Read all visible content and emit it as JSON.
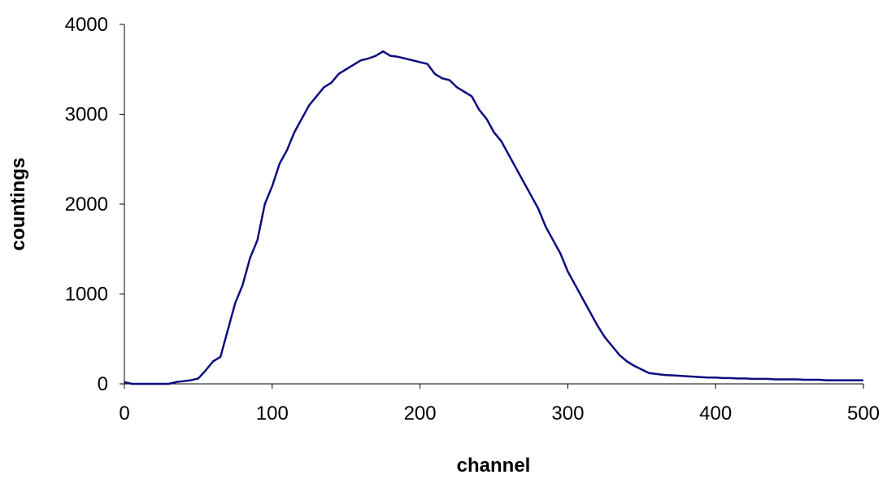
{
  "chart_data": {
    "type": "line",
    "x_label": "channel",
    "y_label": "countings",
    "x": [
      0,
      5,
      10,
      15,
      20,
      25,
      30,
      35,
      40,
      45,
      50,
      55,
      60,
      65,
      70,
      75,
      80,
      85,
      90,
      95,
      100,
      105,
      110,
      115,
      120,
      125,
      130,
      135,
      140,
      145,
      150,
      155,
      160,
      165,
      170,
      175,
      180,
      185,
      190,
      195,
      200,
      205,
      210,
      215,
      220,
      225,
      230,
      235,
      240,
      245,
      250,
      255,
      260,
      265,
      270,
      275,
      280,
      285,
      290,
      295,
      300,
      305,
      310,
      315,
      320,
      325,
      330,
      335,
      340,
      345,
      350,
      355,
      360,
      365,
      370,
      375,
      380,
      385,
      390,
      395,
      400,
      405,
      410,
      415,
      420,
      425,
      430,
      435,
      440,
      445,
      450,
      455,
      460,
      465,
      470,
      475,
      480,
      485,
      490,
      495,
      500
    ],
    "series": [
      {
        "name": "countings",
        "color": "#0d0d80",
        "values": [
          20,
          0,
          0,
          0,
          0,
          0,
          0,
          20,
          30,
          40,
          60,
          150,
          250,
          300,
          600,
          900,
          1100,
          1400,
          1600,
          2000,
          2200,
          2450,
          2600,
          2800,
          2950,
          3100,
          3200,
          3300,
          3350,
          3450,
          3500,
          3550,
          3600,
          3620,
          3650,
          3700,
          3650,
          3640,
          3620,
          3600,
          3580,
          3560,
          3450,
          3400,
          3380,
          3300,
          3250,
          3200,
          3050,
          2950,
          2800,
          2700,
          2550,
          2400,
          2250,
          2100,
          1950,
          1750,
          1600,
          1450,
          1250,
          1100,
          950,
          800,
          650,
          520,
          420,
          320,
          250,
          200,
          160,
          120,
          110,
          100,
          95,
          90,
          85,
          80,
          75,
          70,
          70,
          65,
          65,
          60,
          60,
          55,
          55,
          55,
          50,
          50,
          50,
          50,
          45,
          45,
          45,
          40,
          40,
          40,
          40,
          40,
          40
        ]
      }
    ],
    "xlim": [
      0,
      500
    ],
    "xticks": [
      0,
      100,
      200,
      300,
      400,
      500
    ],
    "ylim": [
      0,
      4000
    ],
    "yticks": [
      0,
      1000,
      2000,
      3000,
      4000
    ]
  }
}
